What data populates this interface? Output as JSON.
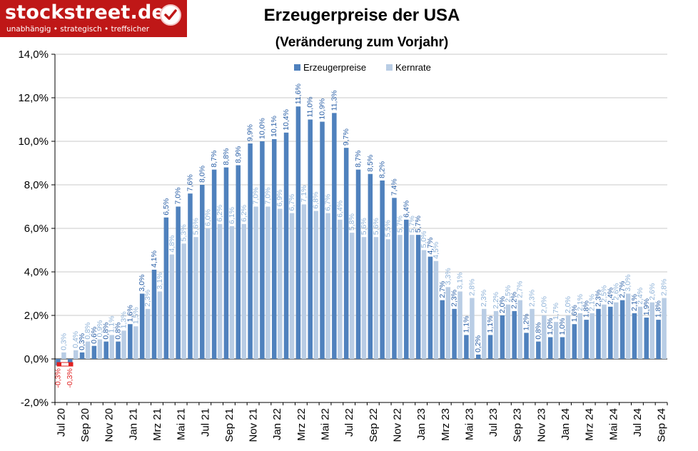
{
  "logo": {
    "name": "stockstreet.de",
    "slogan": "unabhängig • strategisch • treffsicher"
  },
  "chart_data": {
    "type": "bar",
    "title": "Erzeugerpreise der USA",
    "subtitle": "(Veränderung zum Vorjahr)",
    "xlabel": "",
    "ylabel": "",
    "ylim": [
      -2,
      14
    ],
    "yticks": [
      "-2,0%",
      "0,0%",
      "2,0%",
      "4,0%",
      "6,0%",
      "8,0%",
      "10,0%",
      "12,0%",
      "14,0%"
    ],
    "ytick_values": [
      -2,
      0,
      2,
      4,
      6,
      8,
      10,
      12,
      14
    ],
    "grid": true,
    "legend_position": "top-right",
    "x_tick_labels": [
      {
        "index": 0,
        "label": "Jul 20"
      },
      {
        "index": 2,
        "label": "Sep 20"
      },
      {
        "index": 4,
        "label": "Nov 20"
      },
      {
        "index": 6,
        "label": "Jan 21"
      },
      {
        "index": 8,
        "label": "Mrz 21"
      },
      {
        "index": 10,
        "label": "Mai 21"
      },
      {
        "index": 12,
        "label": "Jul 21"
      },
      {
        "index": 14,
        "label": "Sep 21"
      },
      {
        "index": 16,
        "label": "Nov 21"
      },
      {
        "index": 18,
        "label": "Jan 22"
      },
      {
        "index": 20,
        "label": "Mrz 22"
      },
      {
        "index": 22,
        "label": "Mai 22"
      },
      {
        "index": 24,
        "label": "Jul 22"
      },
      {
        "index": 26,
        "label": "Sep 22"
      },
      {
        "index": 28,
        "label": "Nov 22"
      },
      {
        "index": 30,
        "label": "Jan 23"
      },
      {
        "index": 32,
        "label": "Mrz 23"
      },
      {
        "index": 34,
        "label": "Mai 23"
      },
      {
        "index": 36,
        "label": "Jul 23"
      },
      {
        "index": 38,
        "label": "Sep 23"
      },
      {
        "index": 40,
        "label": "Nov 23"
      },
      {
        "index": 42,
        "label": "Jan 24"
      },
      {
        "index": 44,
        "label": "Mrz 24"
      },
      {
        "index": 46,
        "label": "Mai 24"
      },
      {
        "index": 48,
        "label": "Jul 24"
      },
      {
        "index": 50,
        "label": "Sep 24"
      }
    ],
    "series": [
      {
        "name": "Erzeugerpreise",
        "color": "#4f81bd",
        "label_color": "#2a5fa6",
        "negative_label_color": "#e02020",
        "values": [
          -0.3,
          -0.3,
          0.3,
          0.6,
          0.8,
          0.8,
          1.6,
          3.0,
          4.1,
          6.5,
          7.0,
          7.6,
          8.0,
          8.7,
          8.8,
          8.9,
          9.9,
          10.0,
          10.1,
          10.4,
          11.6,
          11.0,
          10.9,
          11.3,
          9.7,
          8.7,
          8.5,
          8.2,
          7.4,
          6.4,
          5.7,
          4.7,
          2.7,
          2.3,
          1.1,
          0.2,
          1.1,
          2.0,
          2.2,
          1.2,
          0.8,
          1.0,
          1.0,
          1.6,
          1.8,
          2.3,
          2.4,
          2.7,
          2.1,
          1.9,
          1.8
        ],
        "labels": [
          "-0,3%",
          "-0,3%",
          "0,3%",
          "0,6%",
          "0,8%",
          "0,8%",
          "1,6%",
          "3,0%",
          "4,1%",
          "6,5%",
          "7,0%",
          "7,6%",
          "8,0%",
          "8,7%",
          "8,8%",
          "8,9%",
          "9,9%",
          "10,0%",
          "10,1%",
          "10,4%",
          "11,6%",
          "11,0%",
          "10,9%",
          "11,3%",
          "9,7%",
          "8,7%",
          "8,5%",
          "8,2%",
          "7,4%",
          "6,4%",
          "5,7%",
          "4,7%",
          "2,7%",
          "2,3%",
          "1,1%",
          "0,2%",
          "1,1%",
          "2,0%",
          "2,2%",
          "1,2%",
          "0,8%",
          "1,0%",
          "1,0%",
          "1,6%",
          "1,8%",
          "2,3%",
          "2,4%",
          "2,7%",
          "2,1%",
          "1,9%",
          "1,8%"
        ]
      },
      {
        "name": "Kernrate",
        "color": "#b9cde5",
        "label_color": "#8eb2d8",
        "values": [
          0.3,
          0.4,
          0.8,
          0.9,
          1.1,
          1.3,
          1.5,
          2.3,
          3.1,
          4.8,
          5.3,
          5.6,
          6.0,
          6.2,
          6.1,
          6.2,
          7.0,
          7.0,
          6.9,
          6.7,
          7.1,
          6.8,
          6.7,
          6.4,
          5.8,
          5.6,
          5.6,
          5.5,
          5.7,
          5.7,
          5.0,
          4.5,
          3.3,
          3.1,
          2.8,
          2.3,
          2.2,
          2.5,
          2.7,
          2.3,
          2.0,
          1.7,
          2.0,
          2.1,
          2.1,
          2.5,
          2.6,
          3.0,
          2.4,
          2.6,
          2.8
        ],
        "labels": [
          "0,3%",
          "0,4%",
          "0,8%",
          "0,9%",
          "1,1%",
          "1,3%",
          "1,5%",
          "2,3%",
          "3,1%",
          "4,8%",
          "5,3%",
          "5,6%",
          "6,0%",
          "6,2%",
          "6,1%",
          "6,2%",
          "7,0%",
          "7,0%",
          "6,9%",
          "6,7%",
          "7,1%",
          "6,8%",
          "6,7%",
          "6,4%",
          "5,8%",
          "5,6%",
          "5,6%",
          "5,5%",
          "5,7%",
          "5,7%",
          "5,0%",
          "4,5%",
          "3,3%",
          "3,1%",
          "2,8%",
          "2,3%",
          "2,2%",
          "2,5%",
          "2,7%",
          "2,3%",
          "2,0%",
          "1,7%",
          "2,0%",
          "2,1%",
          "2,1%",
          "2,5%",
          "2,6%",
          "3,0%",
          "2,4%",
          "2,6%",
          "2,8%"
        ]
      }
    ]
  }
}
